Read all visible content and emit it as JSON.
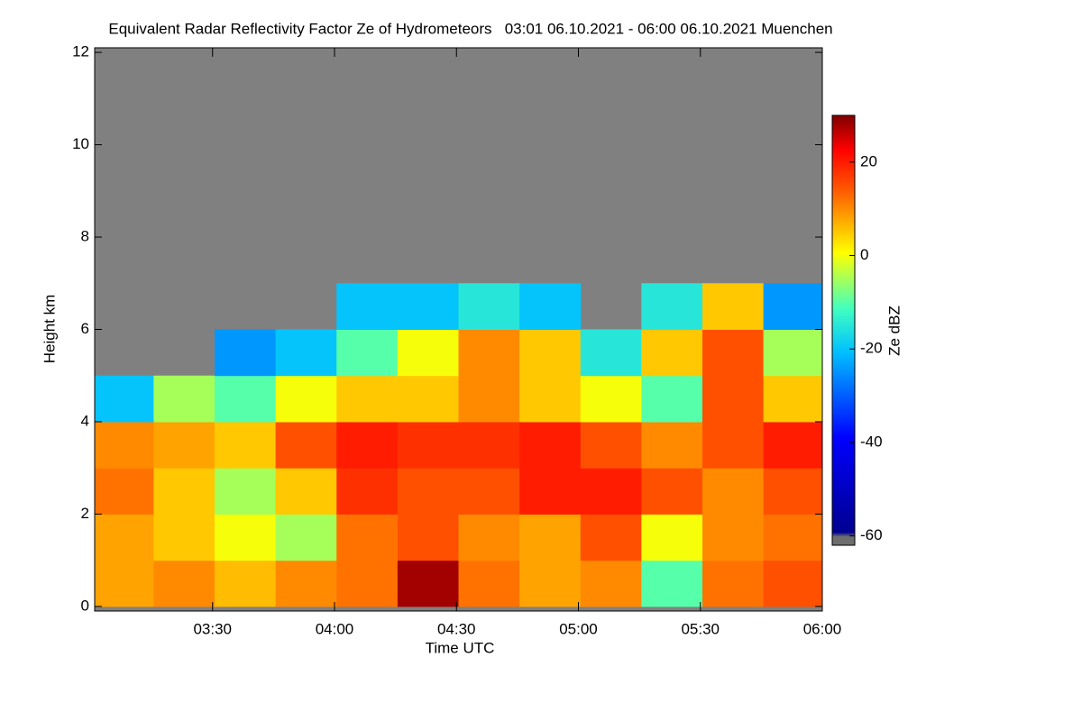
{
  "chart_data": {
    "type": "heatmap",
    "title": "Equivalent Radar Reflectivity Factor Ze of Hydrometeors   03:01 06.10.2021 - 06:00 06.10.2021 Muenchen",
    "x_label": "Time UTC",
    "y_label": "Height km",
    "colorbar_label": "Ze dBZ",
    "x": [
      188,
      203,
      218,
      233,
      248,
      263,
      278,
      293,
      308,
      323,
      338,
      353
    ],
    "y": [
      0.5,
      1.5,
      2.5,
      3.5,
      4.5,
      5.5,
      6.5,
      7.5,
      8.5,
      9.5,
      10.5,
      11.5
    ],
    "z": [
      [
        8,
        10,
        6,
        10,
        12,
        28,
        12,
        8,
        10,
        -10,
        12,
        15
      ],
      [
        8,
        5,
        0,
        -5,
        12,
        15,
        10,
        8,
        15,
        0,
        10,
        12
      ],
      [
        12,
        5,
        -5,
        5,
        18,
        15,
        15,
        20,
        20,
        15,
        10,
        15
      ],
      [
        10,
        8,
        5,
        15,
        20,
        18,
        18,
        20,
        15,
        10,
        15,
        20
      ],
      [
        -20,
        -5,
        -10,
        0,
        5,
        5,
        10,
        5,
        0,
        -10,
        15,
        5
      ],
      [
        null,
        null,
        -25,
        -20,
        -10,
        0,
        10,
        5,
        -15,
        5,
        15,
        -5
      ],
      [
        null,
        null,
        null,
        null,
        -20,
        -20,
        -15,
        -20,
        null,
        -15,
        5,
        -25
      ],
      [
        null,
        null,
        null,
        null,
        null,
        null,
        null,
        null,
        null,
        null,
        null,
        null
      ],
      [
        null,
        null,
        null,
        null,
        null,
        null,
        null,
        null,
        null,
        null,
        null,
        null
      ],
      [
        null,
        null,
        null,
        null,
        null,
        null,
        null,
        null,
        null,
        null,
        null,
        null
      ],
      [
        null,
        null,
        null,
        null,
        null,
        null,
        null,
        null,
        null,
        null,
        null,
        null
      ],
      [
        null,
        null,
        null,
        null,
        null,
        null,
        null,
        null,
        null,
        null,
        null,
        null
      ]
    ],
    "xlim": [
      181,
      360
    ],
    "xticks": [
      {
        "value": 210,
        "label": "03:30"
      },
      {
        "value": 240,
        "label": "04:00"
      },
      {
        "value": 270,
        "label": "04:30"
      },
      {
        "value": 300,
        "label": "05:00"
      },
      {
        "value": 330,
        "label": "05:30"
      },
      {
        "value": 360,
        "label": "06:00"
      }
    ],
    "ylim": [
      -0.1,
      12.1
    ],
    "yticks": [
      0,
      2,
      4,
      6,
      8,
      10,
      12
    ],
    "zlim": [
      -62,
      30
    ],
    "zticks": [
      -60,
      -40,
      -20,
      0,
      20
    ],
    "missing_color": "#808080"
  }
}
